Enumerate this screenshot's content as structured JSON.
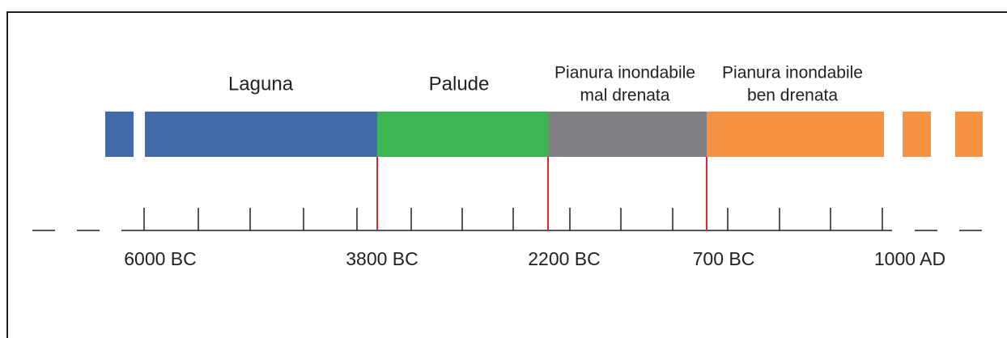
{
  "phases": [
    {
      "label": [
        "Laguna"
      ]
    },
    {
      "label": [
        "Palude"
      ]
    },
    {
      "label": [
        "Pianura inondabile",
        "mal drenata"
      ]
    },
    {
      "label": [
        "Pianura inondabile",
        "ben drenata"
      ]
    }
  ],
  "axis_labels": [
    "6000 BC",
    "3800 BC",
    "2200 BC",
    "700 BC",
    "1000 AD"
  ]
}
